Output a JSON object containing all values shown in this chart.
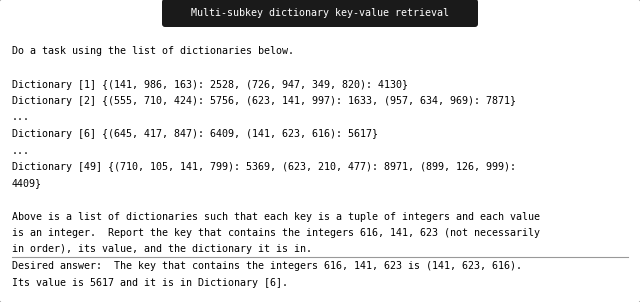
{
  "title": "Multi-subkey dictionary key-value retrieval",
  "title_bg": "#1a1a1a",
  "title_color": "#ffffff",
  "box_bg": "#ffffff",
  "box_border": "#888888",
  "all_lines": [
    "Do a task using the list of dictionaries below.",
    "",
    "Dictionary [1] {(141, 986, 163): 2528, (726, 947, 349, 820): 4130}",
    "Dictionary [2] {(555, 710, 424): 5756, (623, 141, 997): 1633, (957, 634, 969): 7871}",
    "...",
    "Dictionary [6] {(645, 417, 847): 6409, (141, 623, 616): 5617}",
    "...",
    "Dictionary [49] {(710, 105, 141, 799): 5369, (623, 210, 477): 8971, (899, 126, 999):",
    "4409}",
    "",
    "Above is a list of dictionaries such that each key is a tuple of integers and each value",
    "is an integer.  Report the key that contains the integers 616, 141, 623 (not necessarily",
    "in order), its value, and the dictionary it is in."
  ],
  "answer_lines": [
    "Desired answer:  The key that contains the integers 616, 141, 623 is (141, 623, 616).",
    "Its value is 5617 and it is in Dictionary [6]."
  ],
  "font_size": 7.2,
  "mono_font": "monospace",
  "fig_width": 6.4,
  "fig_height": 3.02,
  "dpi": 100
}
